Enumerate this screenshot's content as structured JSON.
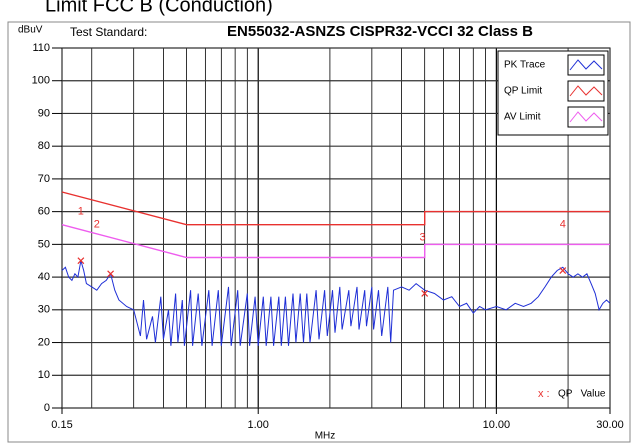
{
  "caption": "Limit FCC B (Conduction)",
  "chart_data": {
    "type": "line",
    "title_label": "Test Standard:",
    "title": "EN55032-ASNZS CISPR32-VCCI 32 Class B",
    "ylabel": "dBuV",
    "xlabel": "MHz",
    "xscale": "log",
    "xlim": [
      0.15,
      30
    ],
    "xticks": [
      0.15,
      {
        "value": 1,
        "label": "1.00"
      },
      {
        "value": 10,
        "label": "10.00"
      },
      {
        "value": 30,
        "label": "30.00"
      }
    ],
    "xgrid": [
      0.2,
      0.3,
      0.4,
      0.5,
      0.6,
      0.7,
      0.8,
      0.9,
      1,
      2,
      3,
      4,
      5,
      6,
      7,
      8,
      9,
      10,
      20
    ],
    "ylim": [
      0,
      110
    ],
    "yticks": [
      0,
      10,
      20,
      30,
      40,
      50,
      60,
      70,
      80,
      90,
      100,
      110
    ],
    "grid": true,
    "legend": "upper right",
    "series": [
      {
        "name": "PK Trace",
        "color": "#1f2fd6",
        "x": [
          0.15,
          0.155,
          0.16,
          0.165,
          0.17,
          0.175,
          0.18,
          0.185,
          0.19,
          0.2,
          0.21,
          0.22,
          0.23,
          0.24,
          0.25,
          0.26,
          0.28,
          0.3,
          0.32,
          0.33,
          0.34,
          0.36,
          0.37,
          0.39,
          0.4,
          0.42,
          0.43,
          0.45,
          0.46,
          0.48,
          0.49,
          0.52,
          0.53,
          0.56,
          0.58,
          0.62,
          0.64,
          0.68,
          0.7,
          0.75,
          0.77,
          0.82,
          0.84,
          0.9,
          0.92,
          0.97,
          1.0,
          1.05,
          1.08,
          1.13,
          1.16,
          1.22,
          1.25,
          1.3,
          1.34,
          1.4,
          1.44,
          1.5,
          1.55,
          1.6,
          1.65,
          1.75,
          1.8,
          1.9,
          1.95,
          2.05,
          2.1,
          2.2,
          2.25,
          2.4,
          2.45,
          2.6,
          2.65,
          2.8,
          2.85,
          3.0,
          3.05,
          3.2,
          3.3,
          3.5,
          3.6,
          3.7,
          4.0,
          4.3,
          4.6,
          5.0,
          5.5,
          6,
          6.5,
          7,
          7.5,
          8,
          8.5,
          9,
          10,
          11,
          12,
          13,
          14,
          15,
          16,
          17,
          18,
          19,
          20,
          21,
          22,
          23,
          24,
          25,
          26,
          27,
          28,
          29,
          30
        ],
        "values": [
          42,
          43,
          40,
          39,
          41,
          40,
          45,
          42,
          38,
          37,
          36,
          38,
          39,
          41,
          36,
          33,
          31,
          30,
          22,
          33,
          21,
          28,
          20,
          34,
          21,
          30,
          19,
          35,
          20,
          33,
          19,
          36,
          19,
          35,
          19,
          36,
          19,
          36,
          19,
          37,
          19,
          36,
          19,
          35,
          19,
          34,
          19,
          34,
          19,
          34,
          19,
          34,
          19,
          34,
          19,
          35,
          20,
          35,
          20,
          35,
          20,
          36,
          21,
          36,
          22,
          36,
          23,
          37,
          24,
          36,
          25,
          37,
          24,
          36,
          25,
          37,
          24,
          36,
          22,
          37,
          20,
          36,
          37,
          36,
          38,
          36,
          35,
          33,
          34,
          31,
          32,
          29,
          31,
          30,
          31,
          30,
          32,
          31,
          32,
          34,
          37,
          40,
          42,
          43,
          41,
          40,
          41,
          40,
          41,
          38,
          35,
          30,
          32,
          33,
          32
        ]
      },
      {
        "name": "QP Limit",
        "color": "#e8312f",
        "x": [
          0.15,
          0.5,
          5,
          5,
          30
        ],
        "values": [
          66,
          56,
          56,
          60,
          60
        ]
      },
      {
        "name": "AV Limit",
        "color": "#ee5cee",
        "x": [
          0.15,
          0.5,
          5,
          5,
          30
        ],
        "values": [
          56,
          46,
          46,
          50,
          50
        ]
      }
    ],
    "qp_points": {
      "color": "#e8312f",
      "x": [
        0.18,
        0.24,
        5,
        19
      ],
      "values": [
        45,
        41,
        35,
        42
      ]
    },
    "annotations": [
      {
        "text": "1",
        "x": 0.18,
        "y": 60
      },
      {
        "text": "2",
        "x": 0.21,
        "y": 56
      },
      {
        "text": "3",
        "x": 4.9,
        "y": 52
      },
      {
        "text": "4",
        "x": 19,
        "y": 56
      }
    ],
    "qp_legend": {
      "symbol": "x :",
      "text": "QP   Value"
    }
  }
}
